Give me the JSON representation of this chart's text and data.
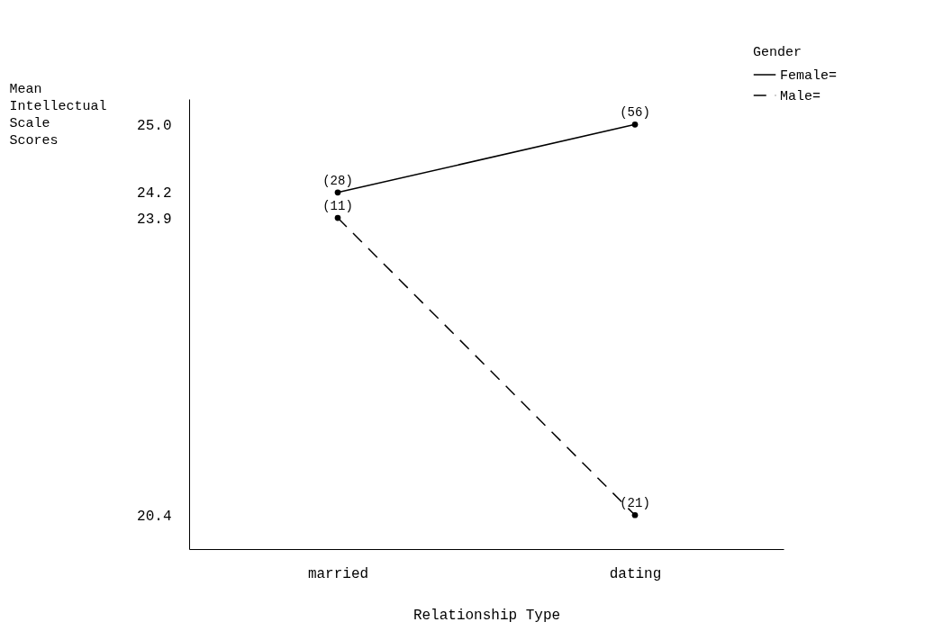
{
  "chart_data": {
    "type": "line",
    "xlabel": "Relationship Type",
    "ylabel": "Mean Intellectual Scale Scores",
    "legend_title": "Gender",
    "categories": [
      "married",
      "dating"
    ],
    "series": [
      {
        "name": "Female=",
        "color": "#000000",
        "values": [
          24.2,
          25.0
        ],
        "line_style": "solid"
      },
      {
        "name": "Male=",
        "color": "#000000",
        "values": [
          23.9,
          20.4
        ],
        "line_style": "dashed"
      }
    ],
    "annotations": [
      {
        "text": "(28)",
        "x": "married",
        "y": 24.2
      },
      {
        "text": "(56)",
        "x": "dating",
        "y": 25.0
      },
      {
        "text": "(11)",
        "x": "married",
        "y": 23.9
      },
      {
        "text": "(21)",
        "x": "dating",
        "y": 20.4
      }
    ],
    "ylim": [
      20,
      25.3
    ],
    "yticks": [
      {
        "value": 25,
        "label": "25.0"
      },
      24.2,
      23.9,
      20.4
    ],
    "marker": "circle",
    "grid": false,
    "legend": "top right"
  }
}
